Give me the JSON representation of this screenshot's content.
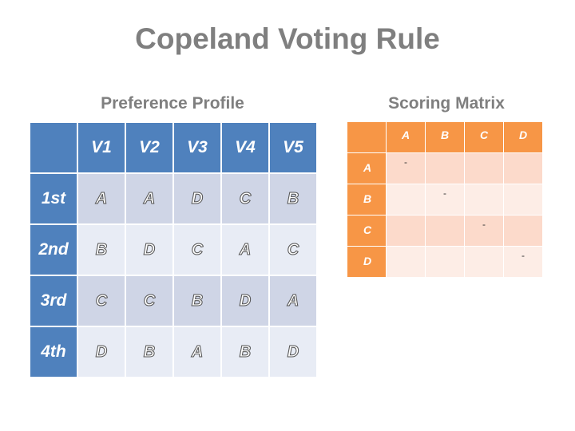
{
  "title": "Copeland Voting Rule",
  "preference_profile": {
    "heading": "Preference Profile",
    "voters": [
      "V1",
      "V2",
      "V3",
      "V4",
      "V5"
    ],
    "rows": [
      {
        "rank": "1st",
        "values": [
          "A",
          "A",
          "D",
          "C",
          "B"
        ]
      },
      {
        "rank": "2nd",
        "values": [
          "B",
          "D",
          "C",
          "A",
          "C"
        ]
      },
      {
        "rank": "3rd",
        "values": [
          "C",
          "C",
          "B",
          "D",
          "A"
        ]
      },
      {
        "rank": "4th",
        "values": [
          "D",
          "B",
          "A",
          "B",
          "D"
        ]
      }
    ]
  },
  "scoring_matrix": {
    "heading": "Scoring Matrix",
    "columns": [
      "A",
      "B",
      "C",
      "D"
    ],
    "rows": [
      {
        "label": "A",
        "values": [
          "-",
          "",
          "",
          ""
        ]
      },
      {
        "label": "B",
        "values": [
          "",
          "-",
          "",
          ""
        ]
      },
      {
        "label": "C",
        "values": [
          "",
          "",
          "-",
          ""
        ]
      },
      {
        "label": "D",
        "values": [
          "",
          "",
          "",
          "-"
        ]
      }
    ]
  },
  "colors": {
    "title": "#7f7f7f",
    "profile_header": "#4f81bd",
    "profile_band_dark": "#cfd5e6",
    "profile_band_light": "#e8ecf5",
    "matrix_header": "#f79646",
    "matrix_band_dark": "#fcdacb",
    "matrix_band_light": "#fdede6"
  }
}
